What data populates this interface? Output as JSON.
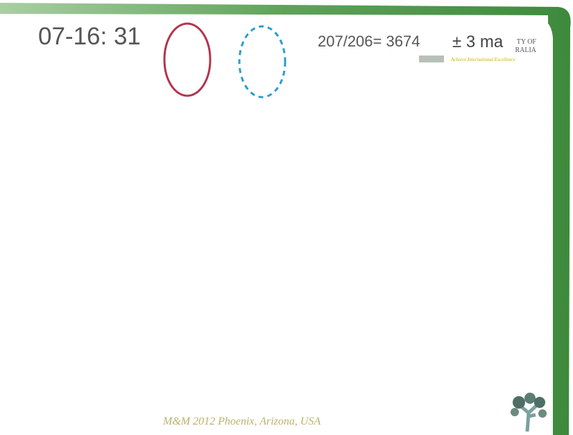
{
  "header": {
    "clock": "07-16: 31",
    "formula": "207/206= 3674",
    "uncertainty": "± 3 ma",
    "logo_line_1": "TY OF",
    "logo_line_2": "RALIA",
    "tagline": "Achieve International Excellence"
  },
  "footer": {
    "conference": "M&M 2012 Phoenix, Arizona, USA"
  }
}
